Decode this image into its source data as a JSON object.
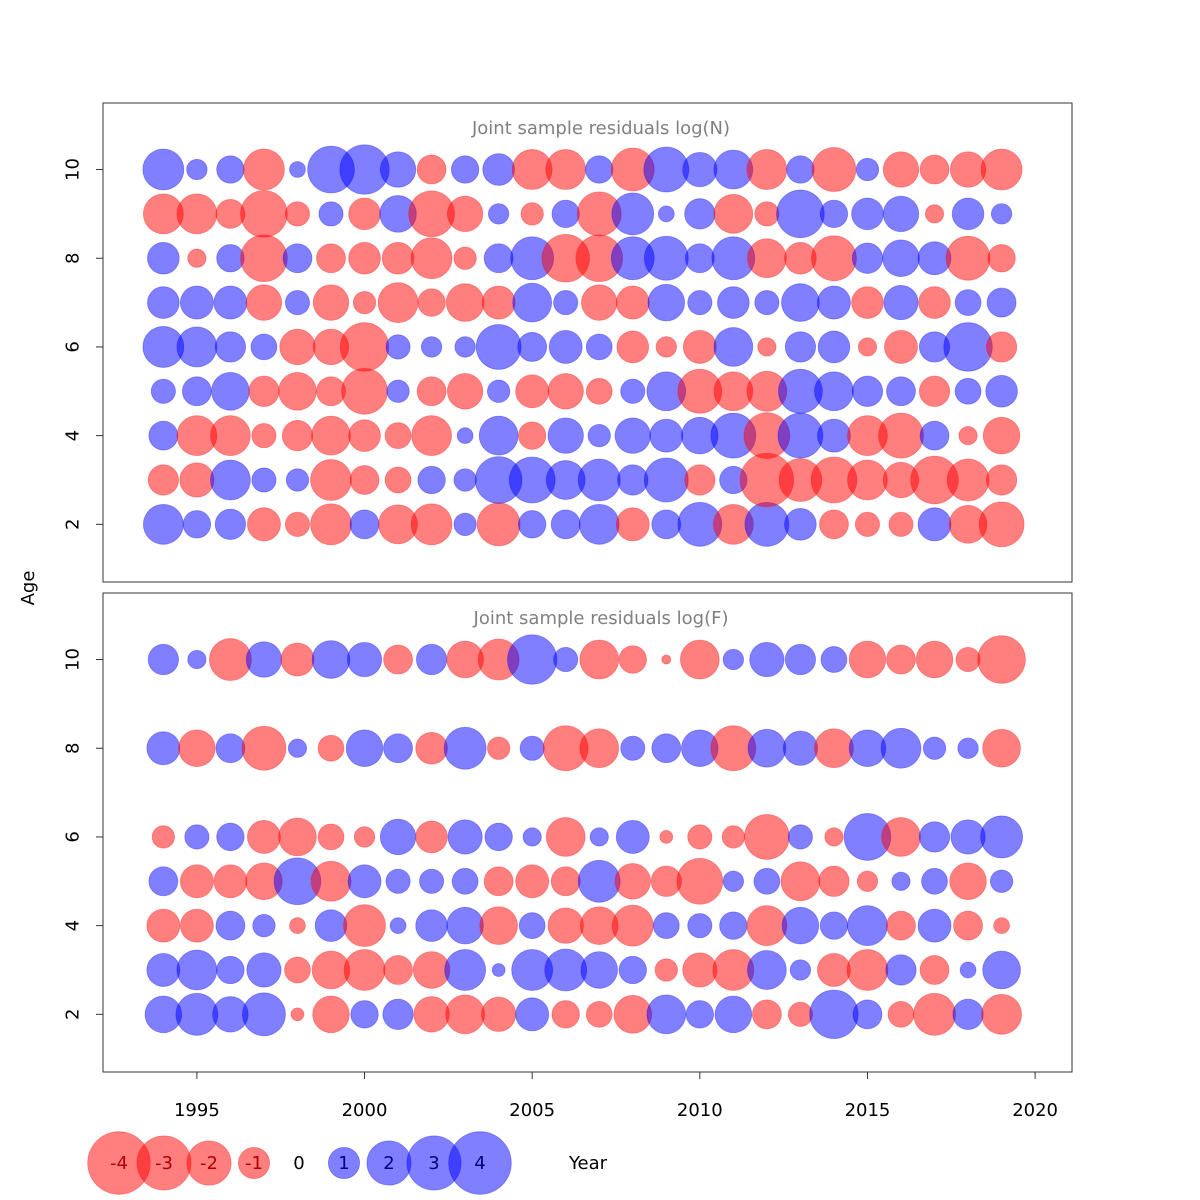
{
  "colors": {
    "negative": "#ff0000",
    "positive": "#0000ff",
    "bubble_opacity": 0.5,
    "frame": "#333333"
  },
  "axes": {
    "xlabel": "Age",
    "ylabel_shared": "Age",
    "year_label": "Year",
    "age_label": "Age"
  },
  "chart_data": [
    {
      "type": "scatter",
      "title": "Joint sample residuals log(N)",
      "xlabel": "Year",
      "ylabel": "Age",
      "xlim": [
        1992.2,
        2021.1
      ],
      "ylim": [
        0.7,
        11.5
      ],
      "x_ticks": [
        1995,
        2000,
        2005,
        2010,
        2015,
        2020
      ],
      "y_ticks": [
        2,
        4,
        6,
        8,
        10
      ],
      "years": [
        1994,
        1995,
        1996,
        1997,
        1998,
        1999,
        2000,
        2001,
        2002,
        2003,
        2004,
        2005,
        2006,
        2007,
        2008,
        2009,
        2010,
        2011,
        2012,
        2013,
        2014,
        2015,
        2016,
        2017,
        2018,
        2019
      ],
      "ages": [
        2,
        3,
        4,
        5,
        6,
        7,
        8,
        9,
        10
      ],
      "residuals": [
        [
          1.9,
          0.9,
          1.1,
          -1.3,
          -0.7,
          -2.0,
          1.0,
          -1.8,
          -2.0,
          0.6,
          -2.2,
          0.9,
          1.0,
          1.9,
          -1.3,
          1.0,
          2.3,
          -1.9,
          2.3,
          1.2,
          -1.0,
          -0.7,
          -0.7,
          1.3,
          -1.7,
          -2.4
        ],
        [
          -1.1,
          -1.4,
          1.9,
          0.7,
          0.6,
          -2.0,
          -1.0,
          -0.8,
          0.9,
          0.6,
          2.6,
          2.5,
          1.8,
          2.1,
          1.1,
          2.3,
          -1.1,
          0.9,
          -3.4,
          -2.2,
          -2.5,
          -1.9,
          -1.5,
          -2.7,
          -2.1,
          -1.1
        ],
        [
          1.0,
          -1.9,
          -1.9,
          -0.7,
          -1.1,
          -1.8,
          -1.2,
          -0.8,
          -1.9,
          0.3,
          1.8,
          -0.9,
          1.5,
          0.6,
          1.5,
          1.3,
          1.6,
          2.4,
          -2.5,
          2.4,
          1.3,
          -1.9,
          -2.4,
          1.0,
          -0.4,
          -1.6
        ],
        [
          0.7,
          1.0,
          1.7,
          -1.1,
          -1.7,
          -1.0,
          -2.5,
          0.6,
          -1.0,
          -1.5,
          0.6,
          -1.3,
          -1.5,
          -0.8,
          0.7,
          1.8,
          -2.3,
          -1.8,
          -1.9,
          2.3,
          1.8,
          1.1,
          1.0,
          -1.1,
          0.8,
          1.2
        ],
        [
          2.0,
          1.9,
          1.1,
          0.8,
          -1.5,
          -1.5,
          -2.8,
          0.7,
          0.5,
          0.5,
          2.4,
          1.0,
          1.3,
          0.8,
          -1.2,
          -0.5,
          -1.3,
          1.8,
          -0.4,
          1.1,
          1.2,
          -0.4,
          -1.3,
          1.1,
          2.8,
          -1.1
        ],
        [
          1.2,
          1.3,
          1.3,
          -1.5,
          0.7,
          -1.5,
          -0.6,
          -1.9,
          -0.9,
          -1.7,
          -1.3,
          1.8,
          0.7,
          -1.5,
          -1.3,
          1.6,
          0.7,
          1.2,
          0.7,
          1.7,
          1.3,
          -1.2,
          1.4,
          -1.2,
          0.8,
          1.0
        ],
        [
          1.2,
          -0.4,
          0.9,
          -2.6,
          1.0,
          -1.0,
          -1.2,
          -1.2,
          -2.0,
          -0.6,
          1.0,
          2.2,
          -2.7,
          -2.6,
          2.2,
          2.3,
          1.0,
          2.2,
          -1.8,
          -1.2,
          -2.4,
          1.1,
          1.6,
          1.3,
          -2.3,
          -0.9
        ],
        [
          -1.9,
          -1.9,
          -1.0,
          -2.6,
          -0.7,
          0.7,
          -1.2,
          1.6,
          -2.5,
          -1.5,
          0.5,
          -0.6,
          0.9,
          -2.3,
          2.1,
          0.3,
          1.1,
          -1.8,
          -0.7,
          2.7,
          0.9,
          1.2,
          1.5,
          -0.4,
          1.2,
          0.5
        ],
        [
          2.0,
          0.5,
          0.9,
          -2.0,
          0.3,
          2.6,
          2.9,
          1.5,
          -1.0,
          0.9,
          1.2,
          -1.9,
          -1.9,
          0.9,
          -2.2,
          2.4,
          1.4,
          1.8,
          -1.9,
          0.9,
          -2.3,
          0.6,
          -1.5,
          -1.0,
          -1.5,
          -2.0
        ]
      ]
    },
    {
      "type": "scatter",
      "title": "Joint sample residuals log(F)",
      "xlabel": "Year",
      "ylabel": "Age",
      "xlim": [
        1992.2,
        2021.1
      ],
      "ylim": [
        0.7,
        11.5
      ],
      "x_ticks": [
        1995,
        2000,
        2005,
        2010,
        2015,
        2020
      ],
      "y_ticks": [
        2,
        4,
        6,
        8,
        10
      ],
      "years": [
        1994,
        1995,
        1996,
        1997,
        1998,
        1999,
        2000,
        2001,
        2002,
        2003,
        2004,
        2005,
        2006,
        2007,
        2008,
        2009,
        2010,
        2011,
        2012,
        2013,
        2014,
        2015,
        2016,
        2017,
        2018,
        2019
      ],
      "ages": [
        2,
        3,
        4,
        5,
        6,
        8,
        10
      ],
      "residuals": [
        [
          1.6,
          2.1,
          1.5,
          2.2,
          -0.2,
          -1.6,
          0.9,
          1.1,
          -1.5,
          -1.8,
          -1.4,
          1.3,
          -0.9,
          -0.8,
          -1.7,
          1.8,
          0.9,
          1.6,
          -1.0,
          -0.7,
          2.8,
          1.0,
          -0.8,
          -2.1,
          1.1,
          -1.9
        ],
        [
          1.3,
          1.9,
          0.9,
          1.4,
          -0.8,
          -1.7,
          -2.0,
          -1.0,
          -1.6,
          2.0,
          0.2,
          2.0,
          2.1,
          1.6,
          0.9,
          -0.6,
          -1.4,
          -2.0,
          1.8,
          0.5,
          -1.3,
          -2.0,
          1.1,
          -1.0,
          0.3,
          1.7
        ],
        [
          -1.3,
          -1.3,
          1.0,
          0.6,
          -0.3,
          1.2,
          -2.1,
          0.3,
          1.2,
          1.6,
          -1.7,
          0.8,
          -1.5,
          -1.7,
          -2.0,
          0.8,
          0.7,
          0.9,
          -1.9,
          1.6,
          0.9,
          1.9,
          -1.0,
          1.3,
          -1.0,
          -0.3
        ],
        [
          1.0,
          -1.3,
          -1.3,
          -1.6,
          2.6,
          -1.9,
          1.3,
          0.7,
          0.7,
          0.8,
          -1.0,
          -1.3,
          -1.0,
          2.1,
          -1.5,
          -1.1,
          -2.5,
          0.5,
          0.8,
          -1.8,
          -1.1,
          -0.5,
          0.4,
          0.8,
          -1.6,
          0.6
        ],
        [
          -0.6,
          0.7,
          0.9,
          -1.3,
          -1.7,
          -0.8,
          -0.5,
          1.5,
          -1.2,
          1.4,
          0.9,
          0.4,
          -1.8,
          0.4,
          1.3,
          -0.2,
          -0.7,
          -0.6,
          -2.4,
          0.7,
          -0.4,
          2.6,
          -1.8,
          1.1,
          1.4,
          2.1
        ],
        [
          1.3,
          -1.6,
          1.0,
          -2.3,
          0.4,
          -0.8,
          1.6,
          1.0,
          -1.2,
          2.1,
          -0.6,
          0.7,
          -2.4,
          -1.8,
          0.7,
          1.0,
          1.6,
          -2.4,
          1.7,
          1.4,
          -1.8,
          1.6,
          1.9,
          0.6,
          0.5,
          -1.7
        ],
        [
          1.1,
          0.4,
          -2.1,
          1.5,
          -1.3,
          1.7,
          1.4,
          -1.0,
          1.1,
          -1.6,
          -2.0,
          2.9,
          0.7,
          -1.8,
          -0.9,
          -0.1,
          -1.8,
          0.5,
          1.4,
          1.1,
          0.8,
          -1.6,
          -1.0,
          -1.6,
          -0.7,
          -2.7
        ]
      ]
    }
  ],
  "legend": {
    "items": [
      {
        "value": -4,
        "label": "-4"
      },
      {
        "value": -3,
        "label": "-3"
      },
      {
        "value": -2,
        "label": "-2"
      },
      {
        "value": -1,
        "label": "-1"
      },
      {
        "value": 0,
        "label": "0"
      },
      {
        "value": 1,
        "label": "1"
      },
      {
        "value": 2,
        "label": "2"
      },
      {
        "value": 3,
        "label": "3"
      },
      {
        "value": 4,
        "label": "4"
      }
    ]
  }
}
